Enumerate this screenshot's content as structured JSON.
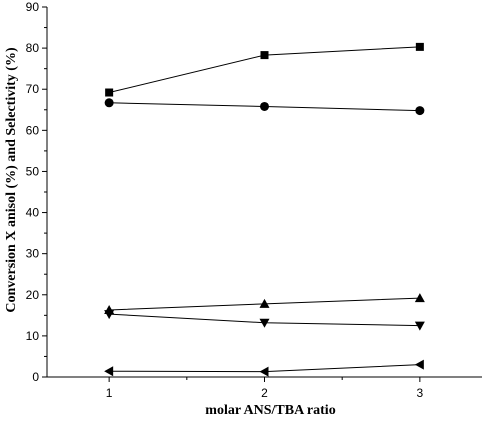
{
  "chart_data": {
    "type": "line",
    "title": "",
    "xlabel": "molar ANS/TBA ratio",
    "ylabel": "Conversion X anisol (%) and Selectivity (%)",
    "x": [
      1,
      2,
      3
    ],
    "xticks": [
      "1",
      "2",
      "3"
    ],
    "xlim": [
      0.6,
      3.4
    ],
    "yticks": [
      "0",
      "10",
      "20",
      "30",
      "40",
      "50",
      "60",
      "70",
      "80",
      "90"
    ],
    "ylim": [
      0,
      90
    ],
    "grid": false,
    "legend": "none",
    "series": [
      {
        "marker": "square",
        "values": [
          69.2,
          78.3,
          80.3
        ]
      },
      {
        "marker": "circle",
        "values": [
          66.7,
          65.8,
          64.8
        ]
      },
      {
        "marker": "triangle-up",
        "values": [
          16.3,
          17.8,
          19.2
        ]
      },
      {
        "marker": "triangle-down",
        "values": [
          15.3,
          13.2,
          12.5
        ]
      },
      {
        "marker": "triangle-left",
        "values": [
          1.4,
          1.3,
          3.0
        ]
      }
    ]
  }
}
